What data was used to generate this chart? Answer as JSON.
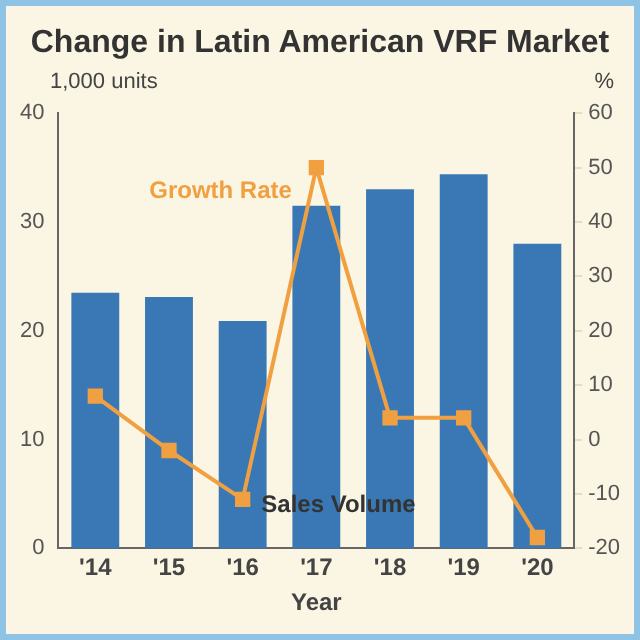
{
  "chart_data": {
    "type": "bar",
    "title": "Change in Latin American VRF Market",
    "xlabel": "Year",
    "ylabel": "1,000 units",
    "y2label": "%",
    "categories": [
      "'14",
      "'15",
      "'16",
      "'17",
      "'18",
      "'19",
      "'20"
    ],
    "series": [
      {
        "name": "Sales Volume",
        "color": "#3a78b5",
        "values": [
          23.5,
          23.1,
          20.9,
          31.5,
          33,
          34.4,
          28
        ]
      },
      {
        "name": "Growth Rate",
        "type": "line",
        "axis": "y2",
        "color": "#f0a040",
        "values": [
          8,
          -2,
          -11,
          50,
          4,
          4,
          -18
        ]
      }
    ],
    "ylim": [
      0,
      40
    ],
    "yticks": [
      0,
      10,
      20,
      30,
      40
    ],
    "y2lim": [
      -20,
      60
    ],
    "y2ticks": [
      -20,
      -10,
      0,
      10,
      20,
      30,
      40,
      50,
      60
    ],
    "marker": "square",
    "legend": false,
    "grid": false
  }
}
